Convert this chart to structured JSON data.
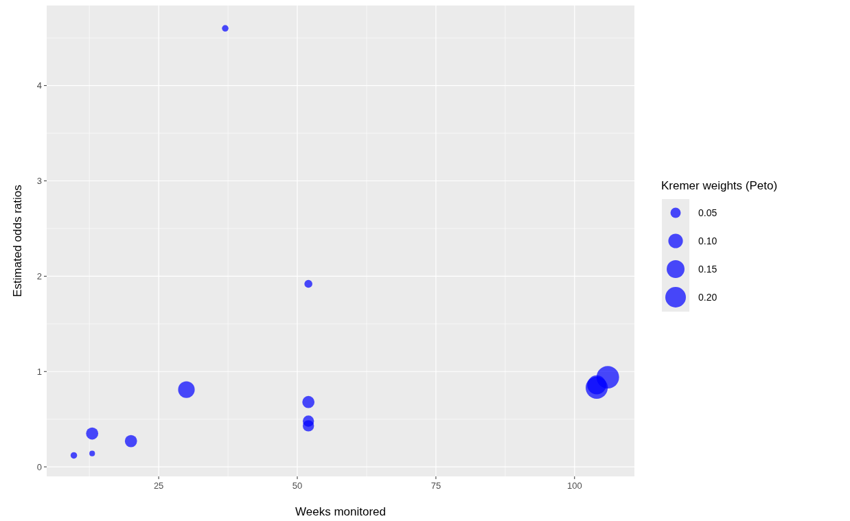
{
  "chart_data": {
    "type": "bubble",
    "xlabel": "Weeks monitored",
    "ylabel": "Estimated odds ratios",
    "legend_title": "Kremer weights (Peto)",
    "xlim": [
      4.8,
      110.8
    ],
    "xticks": [
      25,
      50,
      75,
      100
    ],
    "ylim": [
      -0.1,
      4.84
    ],
    "yticks": [
      0,
      1,
      2,
      3,
      4
    ],
    "grid": true,
    "size_legend": [
      {
        "value": 0.05,
        "label": "0.05"
      },
      {
        "value": 0.1,
        "label": "0.10"
      },
      {
        "value": 0.15,
        "label": "0.15"
      },
      {
        "value": 0.2,
        "label": "0.20"
      }
    ],
    "series": [
      {
        "color": "#0000ff",
        "x": [
          9.7,
          13,
          13,
          20,
          30,
          37,
          52,
          52,
          52,
          52,
          104,
          104,
          106
        ],
        "values": [
          0.12,
          0.14,
          0.35,
          0.27,
          0.81,
          4.6,
          1.92,
          0.68,
          0.48,
          0.43,
          0.83,
          0.86,
          0.94
        ],
        "sizes": [
          0.02,
          0.015,
          0.07,
          0.07,
          0.13,
          0.02,
          0.03,
          0.07,
          0.06,
          0.06,
          0.23,
          0.17,
          0.24
        ]
      }
    ]
  }
}
